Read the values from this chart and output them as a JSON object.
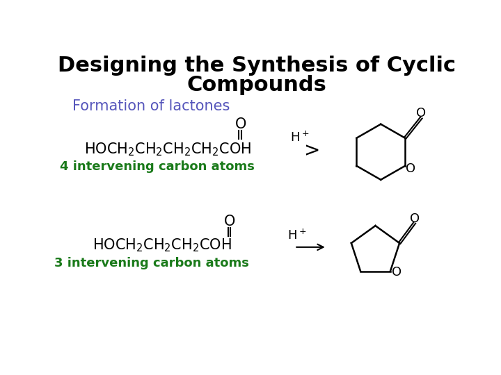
{
  "title_line1": "Designing the Synthesis of Cyclic",
  "title_line2": "Compounds",
  "title_fontsize": 22,
  "title_color": "#000000",
  "subtitle": "Formation of lactones",
  "subtitle_color": "#5555bb",
  "subtitle_fontsize": 15,
  "green_color": "#1a7a1a",
  "black_color": "#000000",
  "bg_color": "#ffffff",
  "r1_formula": "HOCH$_2$CH$_2$CH$_2$CH$_2$COH",
  "r1_label": "4 intervening carbon atoms",
  "r2_formula": "HOCH$_2$CH$_2$CH$_2$COH",
  "r2_label": "3 intervening carbon atoms"
}
